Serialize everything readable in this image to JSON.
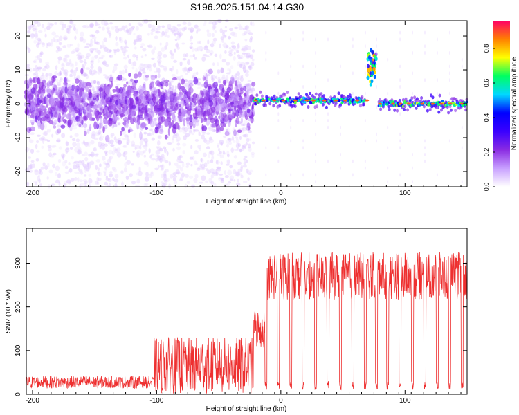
{
  "figure": {
    "title": "S196.2025.151.04.14.G30"
  },
  "chart_data": [
    {
      "type": "heatmap",
      "xlabel": "Height of straight line (km)",
      "ylabel": "Frequency (Hz)",
      "xlim": [
        -205,
        150
      ],
      "ylim": [
        -24.5,
        24.5
      ],
      "x_ticks": [
        -200,
        -100,
        0,
        100
      ],
      "y_ticks": [
        -20,
        -10,
        0,
        10,
        20
      ],
      "colorbar": {
        "label": "Normalized spectral amplitude",
        "ticks": [
          "0.0",
          "0.2",
          "0.4",
          "0.6",
          "0.8"
        ],
        "range": [
          0,
          0.96
        ],
        "colors": [
          "#ffffff",
          "#c8a0ff",
          "#8a2be2",
          "#3a00ff",
          "#0000ff",
          "#00d8ff",
          "#00ff60",
          "#ffff00",
          "#ff8000",
          "#ff0066"
        ]
      },
      "regions": [
        {
          "name": "scattered-energy",
          "x_range": [
            -205,
            -22
          ],
          "center_freq": 0,
          "spread_hz": 6,
          "amplitude": 0.2
        },
        {
          "name": "continuous-line",
          "x_range": [
            -22,
            68
          ],
          "center_freq": 1,
          "amplitude": 0.55
        },
        {
          "name": "high-frequency-burst",
          "x_range": [
            70,
            77
          ],
          "center_freq": 11,
          "amplitude": 0.9
        },
        {
          "name": "continuous-line",
          "x_range": [
            79,
            150
          ],
          "center_freq": 0,
          "amplitude": 0.6
        }
      ],
      "grid": false
    },
    {
      "type": "line",
      "xlabel": "Height of straight line (km)",
      "ylabel": "SNR (10 * v/v)",
      "xlim": [
        -205,
        150
      ],
      "ylim": [
        0,
        380
      ],
      "x_ticks": [
        -200,
        -100,
        0,
        100
      ],
      "y_ticks": [
        0,
        100,
        200,
        300
      ],
      "color": "#ee3030",
      "segments": [
        {
          "x_range": [
            -205,
            -102
          ],
          "level": 22,
          "noise": 28
        },
        {
          "x_range": [
            -102,
            -22
          ],
          "level": 40,
          "noise": 130
        },
        {
          "x_range": [
            -22,
            -12
          ],
          "level": 150,
          "noise": 90
        },
        {
          "x_range": [
            -12,
            150
          ],
          "level": 270,
          "noise": 110
        }
      ],
      "dropouts_x": [
        -12,
        -2,
        8,
        18,
        28,
        38,
        48,
        58,
        68,
        77,
        86,
        96,
        106,
        116,
        126,
        136,
        146
      ],
      "grid": false
    }
  ]
}
